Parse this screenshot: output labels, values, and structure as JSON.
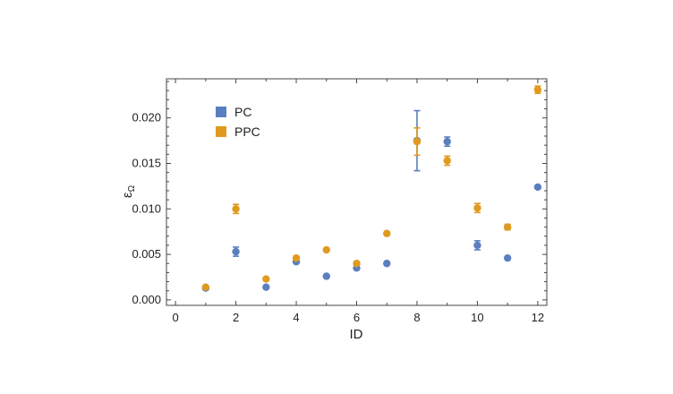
{
  "chart_data": {
    "type": "scatter",
    "xlabel": "ID",
    "ylabel": "ε",
    "ylabel_subscript": "Ω",
    "xlim": [
      -0.3,
      12.3
    ],
    "ylim": [
      -0.0006,
      0.0243
    ],
    "x_ticks": [
      0,
      2,
      4,
      6,
      8,
      10,
      12
    ],
    "y_ticks": [
      0.0,
      0.005,
      0.01,
      0.015,
      0.02
    ],
    "x_tick_labels": [
      "0",
      "2",
      "4",
      "6",
      "8",
      "10",
      "12"
    ],
    "y_tick_labels": [
      "0.000",
      "0.005",
      "0.010",
      "0.015",
      "0.020"
    ],
    "grid": false,
    "legend_position": "top-left",
    "series": [
      {
        "name": "PC",
        "color": "#5a7fbf",
        "points": [
          {
            "x": 1,
            "y": 0.0013,
            "err": 0.0001
          },
          {
            "x": 2,
            "y": 0.0053,
            "err": 0.0005
          },
          {
            "x": 3,
            "y": 0.0014,
            "err": 0.0001
          },
          {
            "x": 4,
            "y": 0.0042,
            "err": 0.0001
          },
          {
            "x": 5,
            "y": 0.0026,
            "err": 0.0001
          },
          {
            "x": 6,
            "y": 0.0035,
            "err": 0.0001
          },
          {
            "x": 7,
            "y": 0.004,
            "err": 0.0001
          },
          {
            "x": 8,
            "y": 0.0175,
            "err": 0.0033
          },
          {
            "x": 9,
            "y": 0.0174,
            "err": 0.0005
          },
          {
            "x": 10,
            "y": 0.006,
            "err": 0.0005
          },
          {
            "x": 11,
            "y": 0.0046,
            "err": 0.0001
          },
          {
            "x": 12,
            "y": 0.0124,
            "err": 0.0001
          }
        ]
      },
      {
        "name": "PPC",
        "color": "#e09a1e",
        "points": [
          {
            "x": 1,
            "y": 0.0014,
            "err": 0.0001
          },
          {
            "x": 2,
            "y": 0.01,
            "err": 0.0005
          },
          {
            "x": 3,
            "y": 0.0023,
            "err": 0.0001
          },
          {
            "x": 4,
            "y": 0.0046,
            "err": 0.0002
          },
          {
            "x": 5,
            "y": 0.0055,
            "err": 0.0001
          },
          {
            "x": 6,
            "y": 0.004,
            "err": 0.0002
          },
          {
            "x": 7,
            "y": 0.0073,
            "err": 0.0001
          },
          {
            "x": 8,
            "y": 0.0174,
            "err": 0.0015
          },
          {
            "x": 9,
            "y": 0.0153,
            "err": 0.0005
          },
          {
            "x": 10,
            "y": 0.0101,
            "err": 0.0005
          },
          {
            "x": 11,
            "y": 0.008,
            "err": 0.0003
          },
          {
            "x": 12,
            "y": 0.0231,
            "err": 0.0004
          }
        ]
      }
    ]
  }
}
